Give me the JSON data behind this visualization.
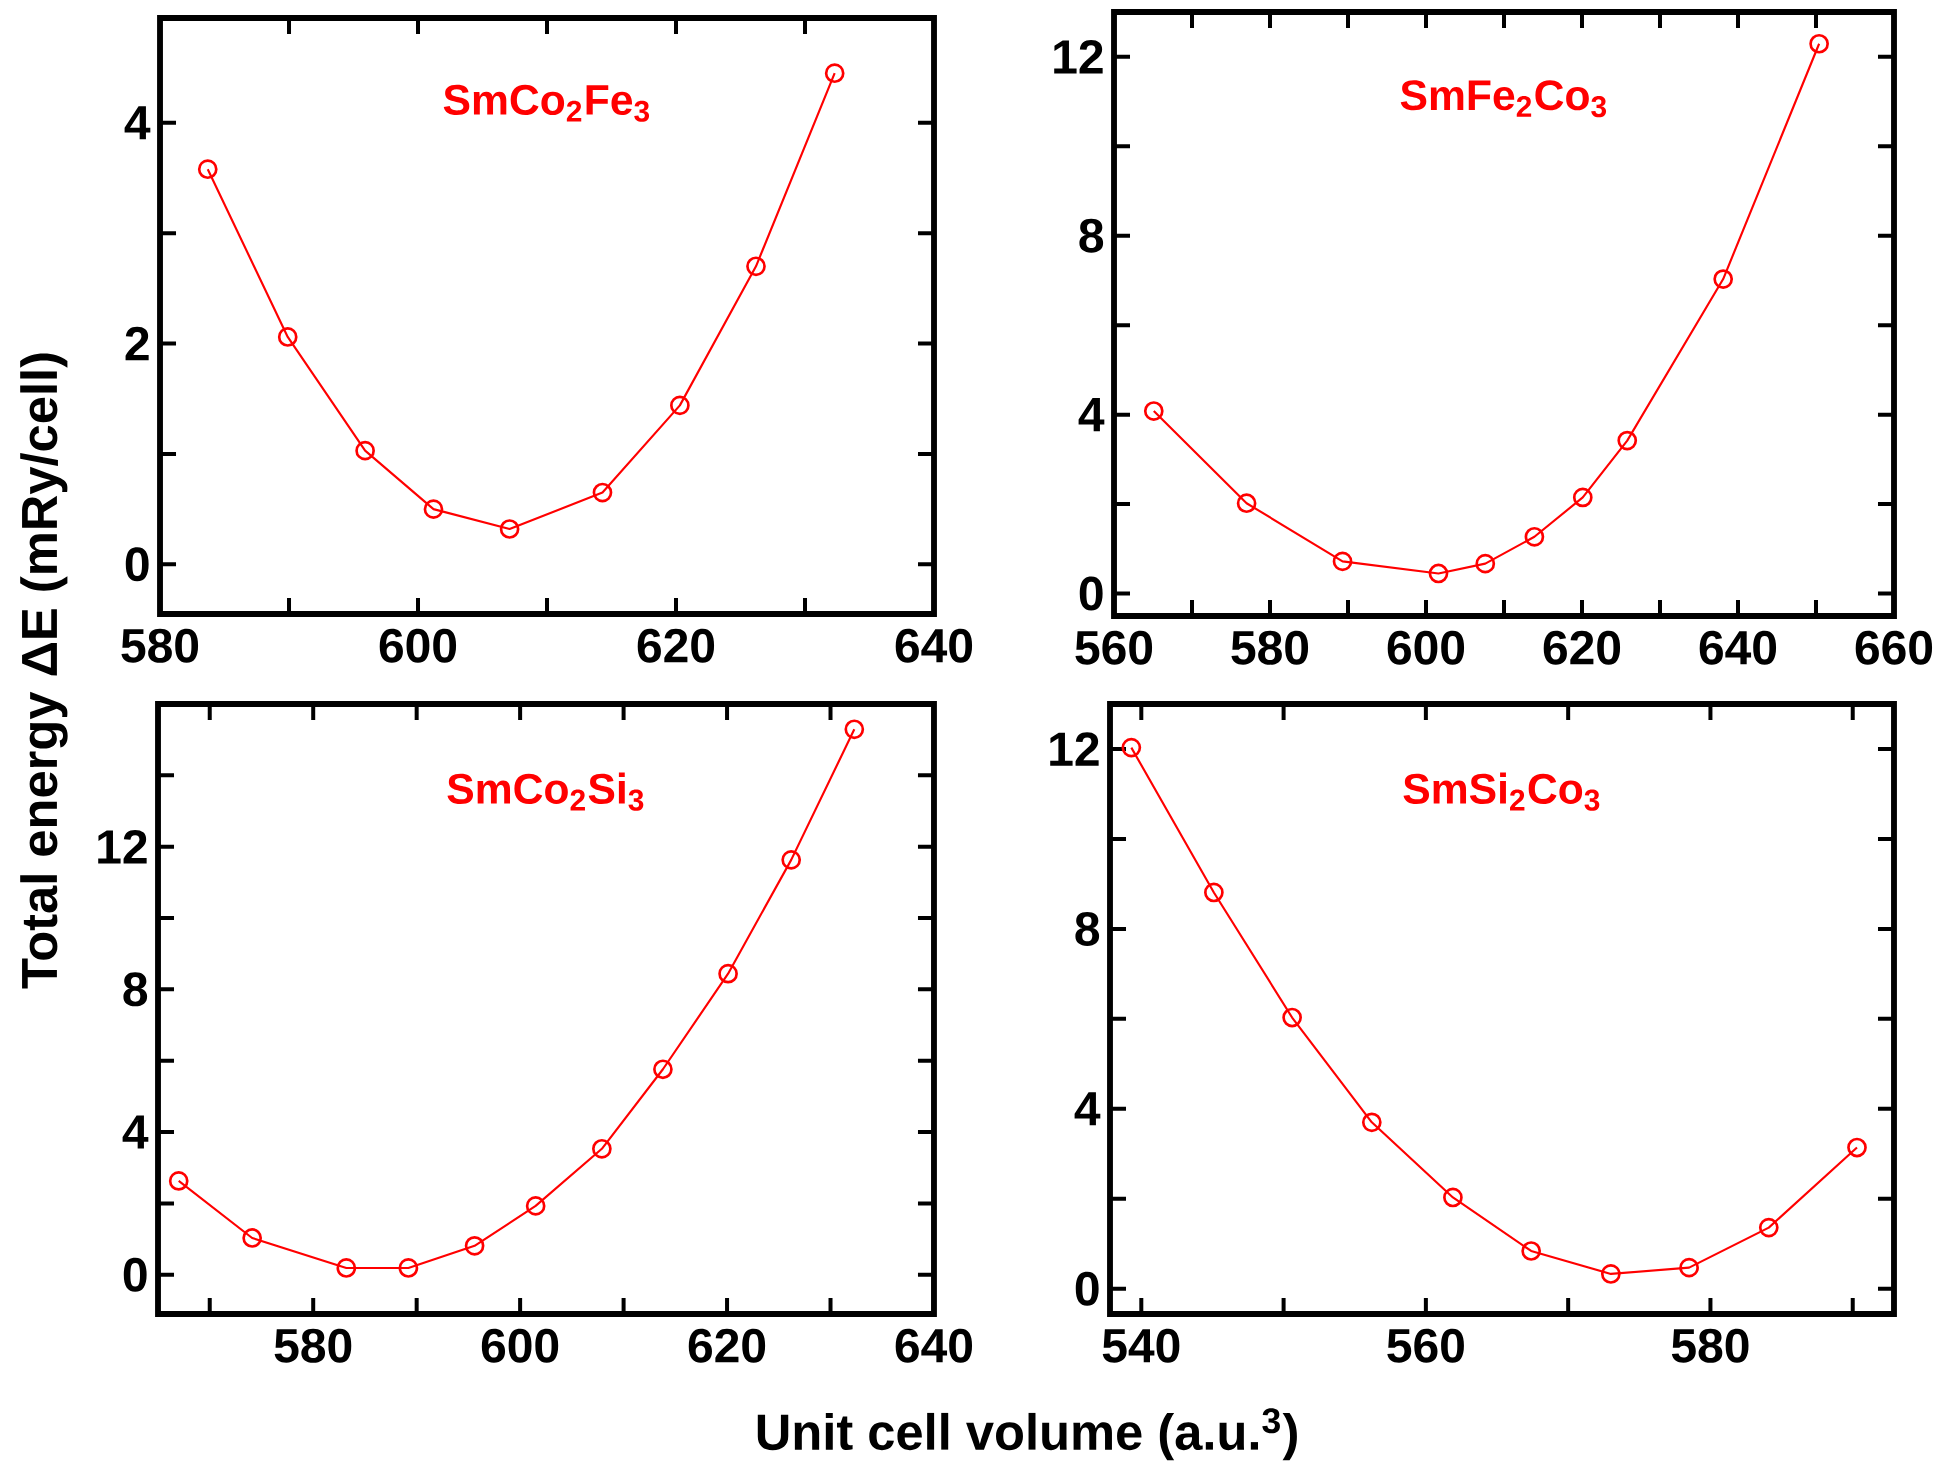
{
  "chart_data": [
    {
      "type": "line",
      "title": "SmCo$_{2}$Fe$_{3}$",
      "ylabel": "Total energy ΔE (mRy/cell)",
      "marker": "circle",
      "line_style": "solid",
      "xlim": [
        580,
        640
      ],
      "ylim": [
        -0.45,
        4.95
      ],
      "xticks": [
        580,
        {
          "value": 590,
          "label": null
        },
        600,
        {
          "value": 610,
          "label": null
        },
        620,
        {
          "value": 630,
          "label": null
        },
        640
      ],
      "yticks": [
        0,
        {
          "value": 1,
          "label": null
        },
        2,
        {
          "value": 3,
          "label": null
        },
        4
      ],
      "series": [
        {
          "color": "#ff0000",
          "x": [
            583.7,
            589.9,
            595.9,
            601.2,
            607.1,
            614.3,
            620.3,
            626.2,
            632.3
          ],
          "values": [
            3.58,
            2.06,
            1.03,
            0.5,
            0.32,
            0.65,
            1.44,
            2.7,
            4.45
          ]
        }
      ]
    },
    {
      "type": "line",
      "title": "SmFe$_{2}$Co$_{3}$",
      "marker": "circle",
      "line_style": "solid",
      "xlim": [
        560,
        660
      ],
      "ylim": [
        -0.5,
        13
      ],
      "xticks": [
        560,
        {
          "value": 570,
          "label": null
        },
        580,
        {
          "value": 590,
          "label": null
        },
        600,
        {
          "value": 610,
          "label": null
        },
        620,
        {
          "value": 630,
          "label": null
        },
        640,
        {
          "value": 650,
          "label": null
        },
        660
      ],
      "yticks": [
        0,
        {
          "value": 2,
          "label": null
        },
        4,
        {
          "value": 6,
          "label": null
        },
        8,
        {
          "value": 10,
          "label": null
        },
        12
      ],
      "series": [
        {
          "color": "#ff0000",
          "x": [
            565.1,
            577.0,
            589.3,
            601.6,
            607.6,
            613.9,
            620.1,
            625.8,
            638.1,
            650.4
          ],
          "values": [
            4.08,
            2.02,
            0.72,
            0.45,
            0.67,
            1.27,
            2.15,
            3.42,
            7.03,
            12.29
          ]
        }
      ]
    },
    {
      "type": "line",
      "title": "SmCo$_{2}$Si$_{3}$",
      "xlabel": "Unit cell volume (a.u.$^{3}$)",
      "marker": "circle",
      "line_style": "solid",
      "xlim": [
        565,
        640
      ],
      "ylim": [
        -1.1,
        16
      ],
      "xticks": [
        {
          "value": 570,
          "label": null
        },
        580,
        {
          "value": 590,
          "label": null
        },
        600,
        {
          "value": 610,
          "label": null
        },
        620,
        {
          "value": 630,
          "label": null
        },
        640
      ],
      "yticks": [
        0,
        {
          "value": 2,
          "label": null
        },
        4,
        {
          "value": 6,
          "label": null
        },
        8,
        {
          "value": 10,
          "label": null
        },
        12,
        {
          "value": 14,
          "label": null
        }
      ],
      "series": [
        {
          "color": "#ff0000",
          "x": [
            567.0,
            574.1,
            583.2,
            589.2,
            595.6,
            601.5,
            607.9,
            613.8,
            620.1,
            626.2,
            632.3
          ],
          "values": [
            2.63,
            1.03,
            0.19,
            0.19,
            0.81,
            1.93,
            3.53,
            5.76,
            8.44,
            11.63,
            15.29
          ]
        }
      ]
    },
    {
      "type": "line",
      "title": "SmSi$_{2}$Co$_{3}$",
      "marker": "circle",
      "line_style": "solid",
      "xlim": [
        537.8,
        592.9
      ],
      "ylim": [
        -0.56,
        13
      ],
      "xticks": [
        540,
        {
          "value": 550,
          "label": null
        },
        560,
        {
          "value": 570,
          "label": null
        },
        580,
        {
          "value": 590,
          "label": null
        }
      ],
      "yticks": [
        0,
        {
          "value": 2,
          "label": null
        },
        4,
        {
          "value": 6,
          "label": null
        },
        8,
        {
          "value": 10,
          "label": null
        },
        12
      ],
      "series": [
        {
          "color": "#ff0000",
          "x": [
            539.3,
            545.1,
            550.6,
            556.2,
            561.9,
            567.4,
            573.0,
            578.5,
            584.1,
            590.3
          ],
          "values": [
            12.03,
            8.81,
            6.03,
            3.7,
            2.03,
            0.84,
            0.33,
            0.47,
            1.36,
            3.14
          ]
        }
      ]
    }
  ]
}
